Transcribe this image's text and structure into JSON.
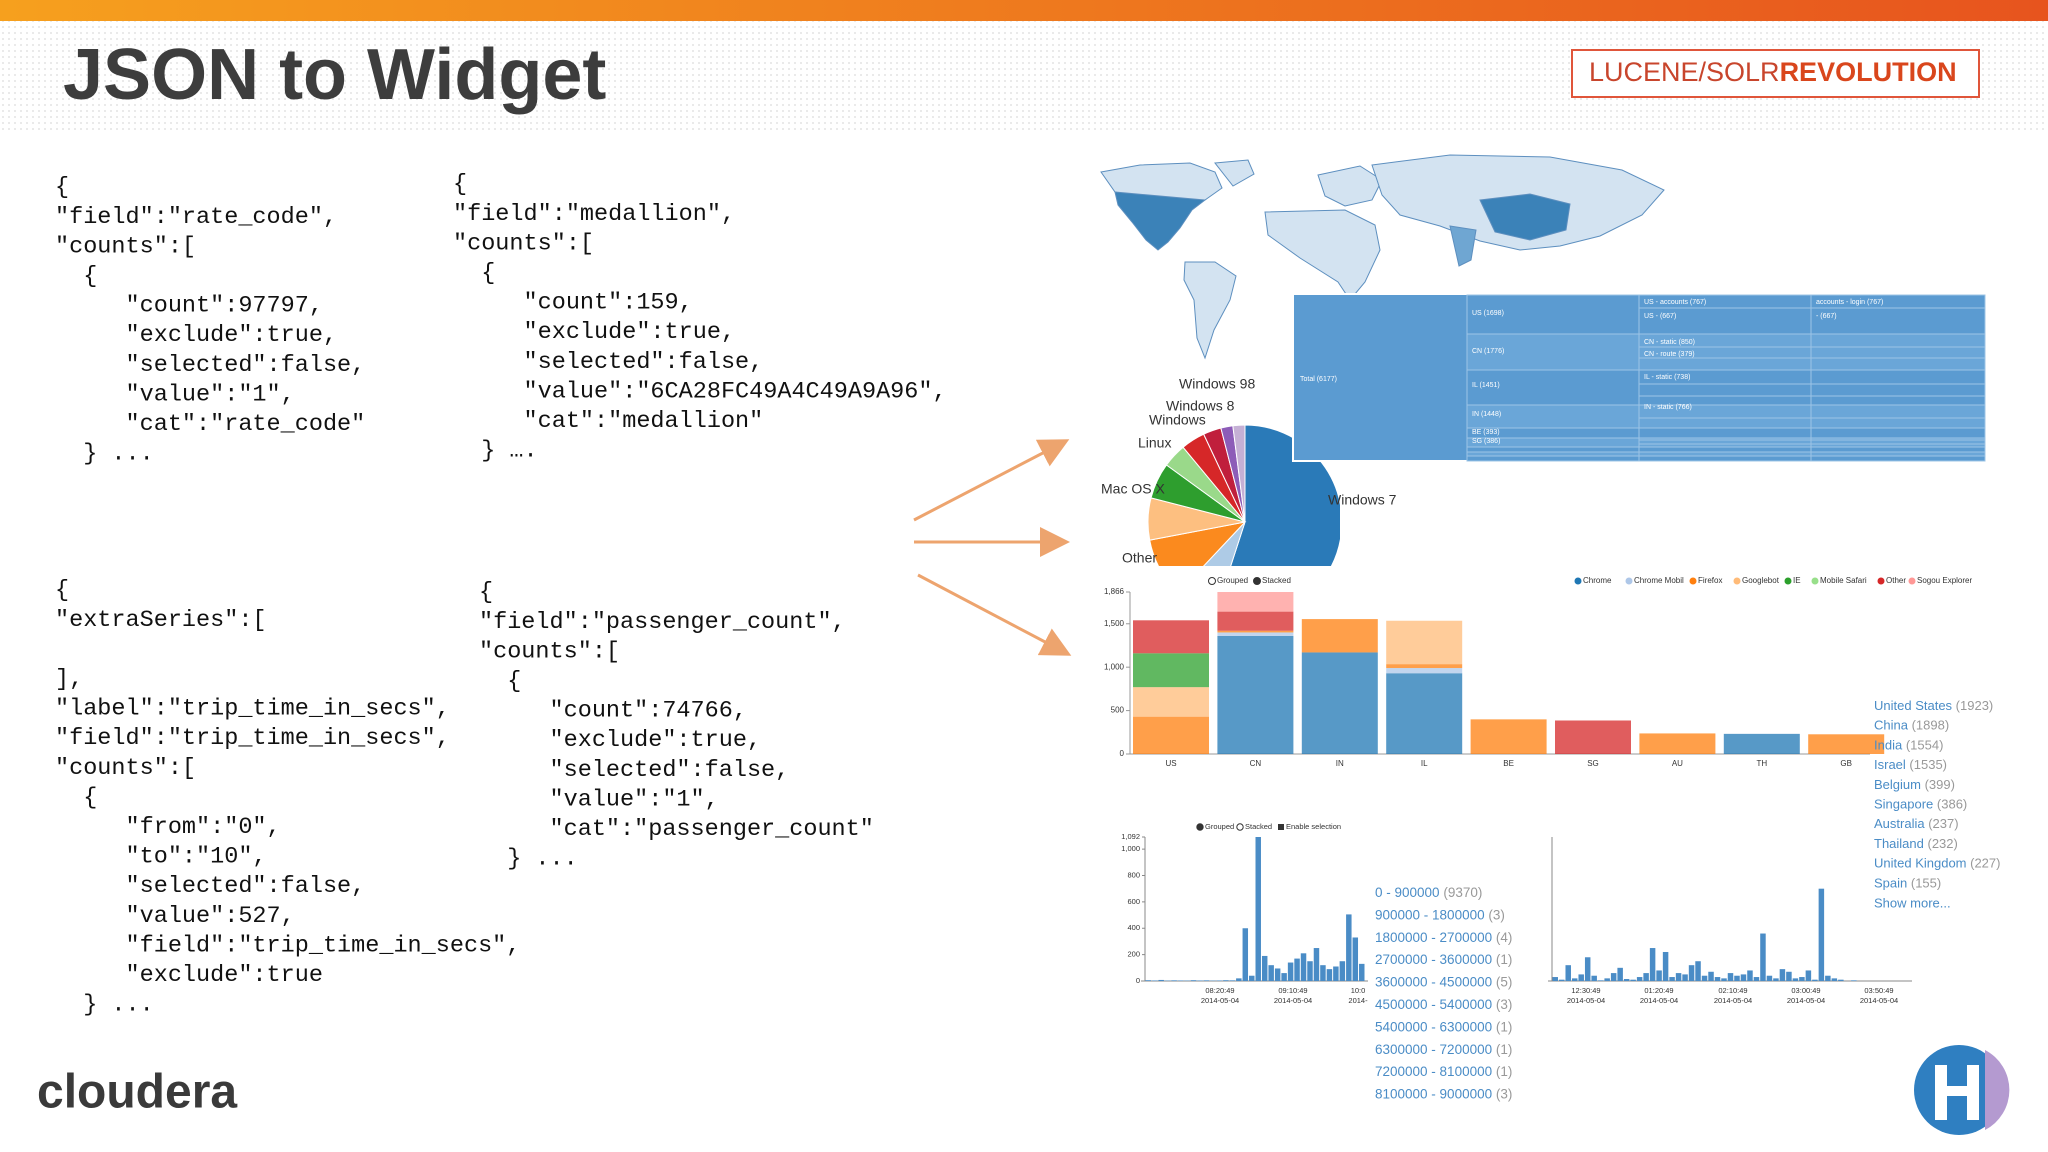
{
  "header": {
    "title": "JSON to Widget",
    "logo": {
      "light": "LUCENE/SOLR",
      "bold": "REVOLUTION"
    }
  },
  "code_blocks": [
    {
      "lines": [
        "{",
        "\"field\":\"rate_code\",",
        "\"counts\":[",
        "  {",
        "     \"count\":97797,",
        "     \"exclude\":true,",
        "     \"selected\":false,",
        "     \"value\":\"1\",",
        "     \"cat\":\"rate_code\"",
        "  } ..."
      ]
    },
    {
      "lines": [
        "{",
        "\"field\":\"medallion\",",
        "\"counts\":[",
        "  {",
        "     \"count\":159,",
        "     \"exclude\":true,",
        "     \"selected\":false,",
        "     \"value\":\"6CA28FC49A4C49A9A96\",",
        "     \"cat\":\"medallion\"",
        "  } …."
      ]
    },
    {
      "lines": [
        "{",
        "\"extraSeries\":[",
        "],",
        "\"label\":\"trip_time_in_secs\",",
        "\"field\":\"trip_time_in_secs\",",
        "\"counts\":[",
        "  {",
        "     \"from\":\"0\",",
        "     \"to\":\"10\",",
        "     \"selected\":false,",
        "     \"value\":527,",
        "     \"field\":\"trip_time_in_secs\",",
        "     \"exclude\":true",
        "  } ..."
      ]
    },
    {
      "lines": [
        "{",
        "\"field\":\"passenger_count\",",
        "\"counts\":[",
        "  {",
        "     \"count\":74766,",
        "     \"exclude\":true,",
        "     \"selected\":false,",
        "     \"value\":\"1\",",
        "     \"cat\":\"passenger_count\"",
        "  } ..."
      ]
    }
  ],
  "treemap": {
    "labels": [
      "Total (6177)",
      "US (1698)",
      "CN (1776)",
      "IL (1451)",
      "IN (1448)",
      "BE (393)",
      "SG (386)",
      "US - accounts (767)",
      "US - (667)",
      "CN - static (850)",
      "CN - route (379)",
      "IL - static (738)",
      "IN - static (766)",
      "accounts - login (767)",
      "- (667)"
    ]
  },
  "chart_data": [
    {
      "type": "pie",
      "categories": [
        "Windows 7",
        "Other",
        "Mac OS X",
        null,
        "Linux",
        null,
        "Windows",
        "Windows 8",
        "Windows 98",
        null
      ],
      "values": [
        55,
        7,
        10,
        7,
        6,
        4,
        4,
        3,
        2,
        2
      ],
      "colors": [
        "#2a7ab8",
        "#aecbe6",
        "#fb8a1e",
        "#fdbf80",
        "#2e9e2e",
        "#9ad98a",
        "#d62728",
        "#c01f3c",
        "#8d5cb8",
        "#c5b0d5"
      ]
    },
    {
      "type": "bar",
      "stacked": true,
      "controls": [
        "Grouped",
        "Stacked"
      ],
      "categories": [
        "US",
        "CN",
        "IN",
        "IL",
        "BE",
        "SG",
        "AU",
        "TH",
        "GB"
      ],
      "series": [
        {
          "name": "Chrome",
          "color": "#1f77b4",
          "values": [
            null,
            1360,
            1170,
            930,
            null,
            null,
            null,
            232,
            null
          ]
        },
        {
          "name": "Chrome Mobil",
          "color": "#aec7e8",
          "values": [
            null,
            40,
            null,
            60,
            null,
            null,
            null,
            null,
            null
          ]
        },
        {
          "name": "Firefox",
          "color": "#ff7f0e",
          "values": [
            430,
            20,
            384,
            45,
            399,
            null,
            237,
            null,
            227
          ]
        },
        {
          "name": "Googlebot",
          "color": "#ffbb78",
          "values": [
            340,
            null,
            null,
            500,
            null,
            null,
            null,
            null,
            null
          ]
        },
        {
          "name": "IE",
          "color": "#2ca02c",
          "values": [
            390,
            null,
            null,
            null,
            null,
            null,
            null,
            null,
            null
          ]
        },
        {
          "name": "Mobile Safari",
          "color": "#98df8a",
          "values": [
            null,
            null,
            null,
            null,
            null,
            null,
            null,
            null,
            null
          ]
        },
        {
          "name": "Other",
          "color": "#d62728",
          "values": [
            380,
            220,
            null,
            null,
            null,
            386,
            null,
            null,
            null
          ]
        },
        {
          "name": "Sogou Explorer",
          "color": "#ff9896",
          "values": [
            null,
            226,
            null,
            null,
            null,
            null,
            null,
            null,
            null
          ]
        }
      ],
      "ylim": [
        0,
        1866
      ],
      "yticks": [
        0,
        500,
        {
          "value": 1000,
          "label": "1,000"
        },
        {
          "value": 1500,
          "label": "1,500"
        },
        {
          "value": 1866,
          "label": "1,866"
        }
      ],
      "legend_list": {
        "items": [
          {
            "name": "United States",
            "count": "(1923)"
          },
          {
            "name": "China",
            "count": "(1898)"
          },
          {
            "name": "India",
            "count": "(1554)"
          },
          {
            "name": "Israel",
            "count": "(1535)"
          },
          {
            "name": "Belgium",
            "count": "(399)"
          },
          {
            "name": "Singapore",
            "count": "(386)"
          },
          {
            "name": "Australia",
            "count": "(237)"
          },
          {
            "name": "Thailand",
            "count": "(232)"
          },
          {
            "name": "United Kingdom",
            "count": "(227)"
          },
          {
            "name": "Spain",
            "count": "(155)"
          }
        ],
        "more": "Show more..."
      }
    },
    {
      "type": "column",
      "controls": [
        "Grouped",
        "Stacked",
        "Enable selection"
      ],
      "color": "#4a8cc6",
      "values": [
        6,
        4,
        8,
        3,
        5,
        4,
        3,
        6,
        4,
        5,
        3,
        4,
        6,
        5,
        20,
        400,
        40,
        1092,
        190,
        120,
        95,
        60,
        140,
        170,
        210,
        150,
        250,
        120,
        90,
        110,
        150,
        505,
        330,
        130
      ],
      "ylim": [
        0,
        1092
      ],
      "yticks": [
        0,
        200,
        400,
        600,
        800,
        {
          "value": 1000,
          "label": "1,000"
        },
        {
          "value": 1092,
          "label": "1,092"
        }
      ],
      "x_labels": [
        {
          "time": "08:20:49",
          "date": "2014-05-04"
        },
        {
          "time": "09:10:49",
          "date": "2014-05-04"
        },
        {
          "time": "10:0",
          "date": "2014-"
        }
      ]
    },
    {
      "type": "column",
      "color": "#4a8cc6",
      "values": [
        30,
        10,
        120,
        20,
        50,
        180,
        40,
        5,
        20,
        60,
        100,
        15,
        10,
        30,
        60,
        250,
        80,
        220,
        30,
        60,
        50,
        120,
        150,
        40,
        70,
        30,
        20,
        60,
        40,
        50,
        80,
        30,
        360,
        40,
        20,
        90,
        70,
        20,
        30,
        80,
        10,
        700,
        40,
        20,
        10,
        0,
        5,
        0,
        0,
        0,
        0,
        0,
        0,
        0,
        0
      ],
      "ylim": [
        0,
        1092
      ],
      "x_labels": [
        {
          "time": "12:30:49",
          "date": "2014-05-04"
        },
        {
          "time": "01:20:49",
          "date": "2014-05-04"
        },
        {
          "time": "02:10:49",
          "date": "2014-05-04"
        },
        {
          "time": "03:00:49",
          "date": "2014-05-04"
        },
        {
          "time": "03:50:49",
          "date": "2014-05-04"
        }
      ]
    }
  ],
  "ranges": [
    {
      "range": "0 - 900000",
      "count": "(9370)"
    },
    {
      "range": "900000 - 1800000",
      "count": "(3)"
    },
    {
      "range": "1800000 - 2700000",
      "count": "(4)"
    },
    {
      "range": "2700000 - 3600000",
      "count": "(1)"
    },
    {
      "range": "3600000 - 4500000",
      "count": "(5)"
    },
    {
      "range": "4500000 - 5400000",
      "count": "(3)"
    },
    {
      "range": "5400000 - 6300000",
      "count": "(1)"
    },
    {
      "range": "6300000 - 7200000",
      "count": "(1)"
    },
    {
      "range": "7200000 - 8100000",
      "count": "(1)"
    },
    {
      "range": "8100000 - 9000000",
      "count": "(3)"
    }
  ],
  "footer": {
    "brand": "cloudera"
  }
}
